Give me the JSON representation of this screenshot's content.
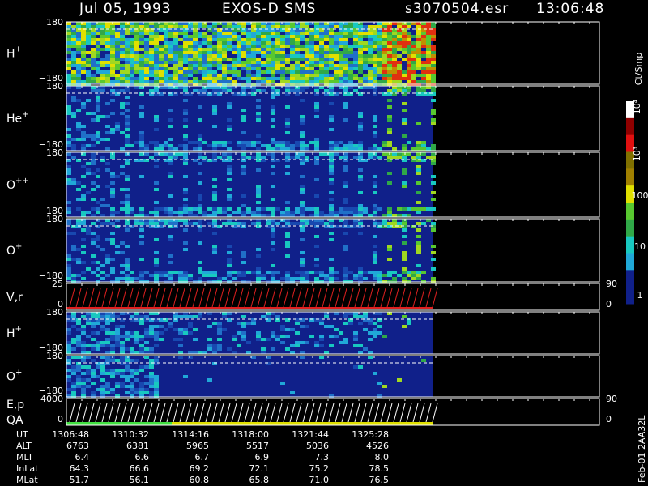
{
  "header": {
    "date": "Jul 05, 1993",
    "instrument": "EXOS-D SMS",
    "file": "s3070504.esr",
    "time": "13:06:48"
  },
  "panels": [
    {
      "label": "H",
      "superscript": "+",
      "ticks": [
        "180",
        "−180"
      ]
    },
    {
      "label": "He",
      "superscript": "+",
      "ticks": [
        "180",
        "−180"
      ]
    },
    {
      "label": "O",
      "superscript": "++",
      "ticks": [
        "180",
        "−180"
      ]
    },
    {
      "label": "O",
      "superscript": "+",
      "ticks": [
        "180",
        "−180"
      ]
    },
    {
      "label": "V,r",
      "ticks": [
        "25",
        "0"
      ],
      "right_ticks": [
        "90",
        "0"
      ]
    },
    {
      "label": "H",
      "superscript": "+",
      "ticks": [
        "180",
        "−180"
      ]
    },
    {
      "label": "O",
      "superscript": "+",
      "ticks": [
        "180",
        "−180"
      ]
    },
    {
      "label": "E,p",
      "label2": "QA",
      "ticks": [
        "4000",
        "0"
      ],
      "right_ticks": [
        "90",
        "0"
      ]
    }
  ],
  "colorbar": {
    "unit": "Ct/Smp",
    "labels": [
      "10⁴",
      "10³",
      "100",
      "10",
      "1"
    ]
  },
  "table": {
    "rows": [
      {
        "name": "UT",
        "values": [
          "1306:48",
          "1310:32",
          "1314:16",
          "1318:00",
          "1321:44",
          "1325:28"
        ]
      },
      {
        "name": "ALT",
        "values": [
          "6763",
          "6381",
          "5965",
          "5517",
          "5036",
          "4526"
        ]
      },
      {
        "name": "MLT",
        "values": [
          "6.4",
          "6.6",
          "6.7",
          "6.9",
          "7.3",
          "8.0"
        ]
      },
      {
        "name": "InLat",
        "values": [
          "64.3",
          "66.6",
          "69.2",
          "72.1",
          "75.2",
          "78.5"
        ]
      },
      {
        "name": "MLat",
        "values": [
          "51.7",
          "56.1",
          "60.8",
          "65.8",
          "71.0",
          "76.5"
        ]
      }
    ]
  },
  "footer": "Feb-01 2AA32L"
}
